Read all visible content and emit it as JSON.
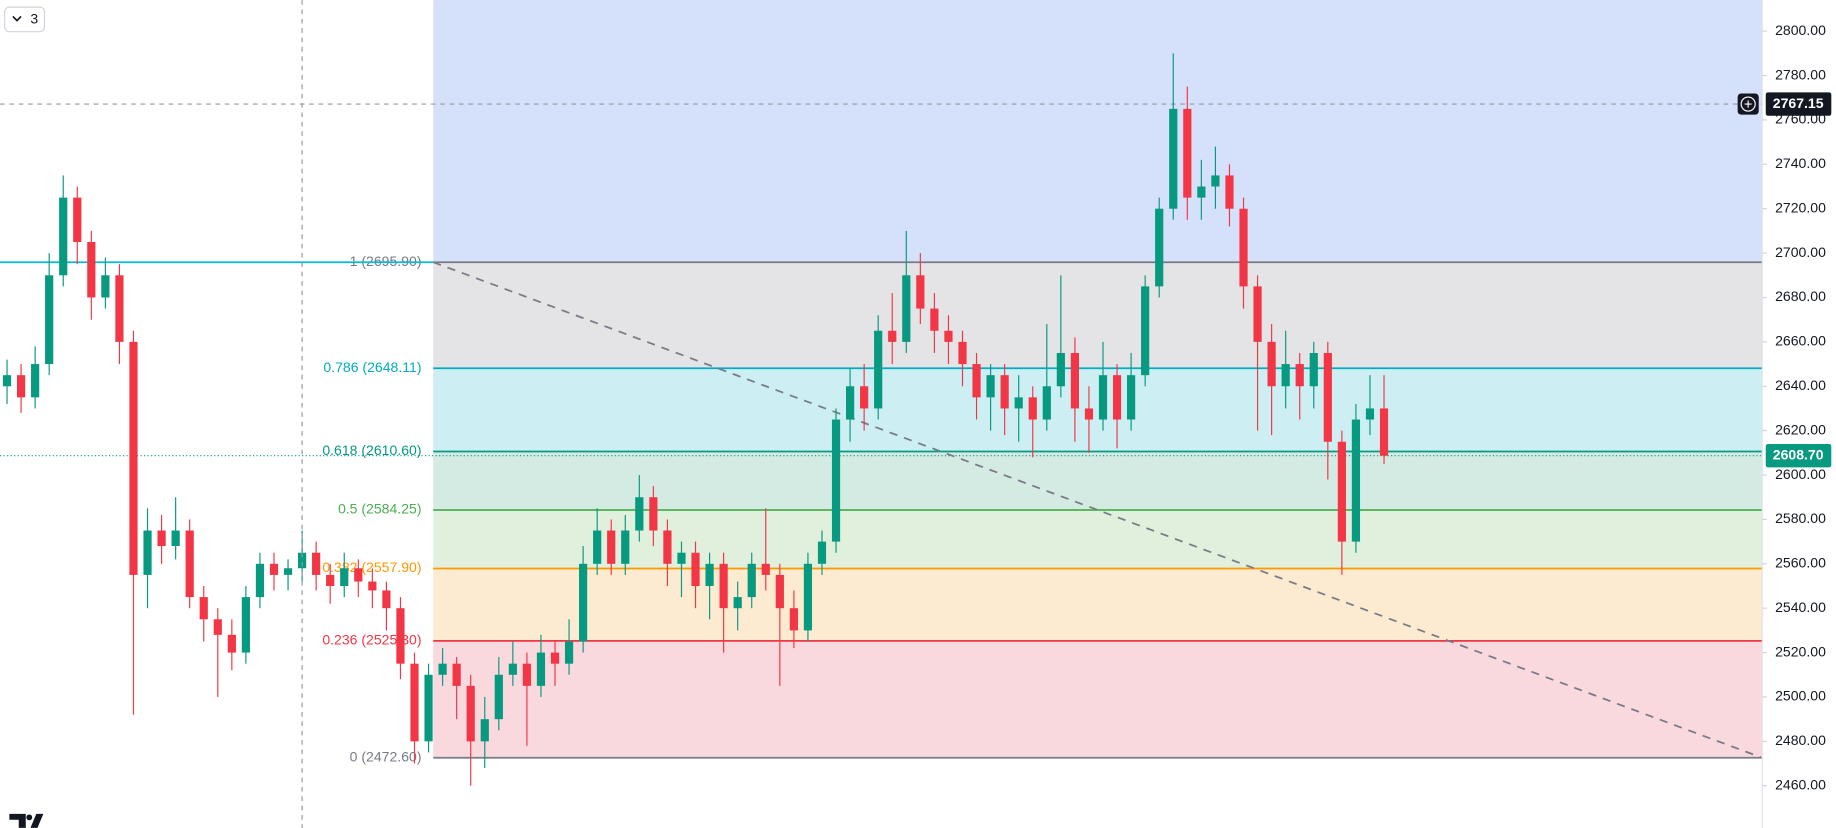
{
  "ui": {
    "indicator_count": "3"
  },
  "chart_data": {
    "type": "candlestick",
    "open": [
      2640,
      2645,
      2635,
      2650,
      2690,
      2725,
      2705,
      2680,
      2690,
      2660,
      2555,
      2575,
      2568,
      2575,
      2545,
      2535,
      2528,
      2520,
      2545,
      2560,
      2555,
      2558,
      2565,
      2555,
      2550,
      2558,
      2552,
      2548,
      2540,
      2515,
      2480,
      2510,
      2515,
      2505,
      2480,
      2490,
      2510,
      2515,
      2505,
      2520,
      2515,
      2525,
      2560,
      2575,
      2560,
      2575,
      2590,
      2575,
      2560,
      2565,
      2550,
      2560,
      2540,
      2545,
      2560,
      2555,
      2540,
      2530,
      2560,
      2570,
      2625,
      2640,
      2630,
      2665,
      2660,
      2690,
      2675,
      2665,
      2660,
      2650,
      2635,
      2645,
      2630,
      2635,
      2625,
      2640,
      2655,
      2630,
      2625,
      2645,
      2625,
      2645,
      2685,
      2720,
      2765,
      2725,
      2730,
      2735,
      2720,
      2685,
      2660,
      2640,
      2650,
      2640,
      2655,
      2615,
      2570,
      2625,
      2630
    ],
    "high": [
      2652,
      2650,
      2658,
      2700,
      2735,
      2730,
      2710,
      2698,
      2695,
      2665,
      2585,
      2582,
      2590,
      2580,
      2550,
      2540,
      2535,
      2550,
      2565,
      2565,
      2562,
      2575,
      2570,
      2560,
      2565,
      2562,
      2558,
      2552,
      2545,
      2520,
      2515,
      2522,
      2518,
      2510,
      2500,
      2518,
      2525,
      2520,
      2528,
      2525,
      2535,
      2568,
      2585,
      2580,
      2582,
      2600,
      2595,
      2580,
      2570,
      2570,
      2565,
      2565,
      2552,
      2565,
      2585,
      2560,
      2548,
      2565,
      2575,
      2630,
      2648,
      2650,
      2672,
      2682,
      2710,
      2700,
      2682,
      2672,
      2665,
      2655,
      2650,
      2650,
      2645,
      2640,
      2668,
      2690,
      2662,
      2640,
      2660,
      2650,
      2655,
      2690,
      2725,
      2790,
      2775,
      2742,
      2748,
      2740,
      2725,
      2690,
      2668,
      2665,
      2655,
      2660,
      2660,
      2620,
      2632,
      2645,
      2645
    ],
    "low": [
      2632,
      2628,
      2630,
      2645,
      2685,
      2695,
      2670,
      2675,
      2650,
      2492,
      2540,
      2560,
      2562,
      2540,
      2525,
      2500,
      2512,
      2515,
      2540,
      2548,
      2548,
      2552,
      2548,
      2542,
      2545,
      2545,
      2540,
      2530,
      2508,
      2470,
      2475,
      2505,
      2490,
      2460,
      2468,
      2485,
      2505,
      2478,
      2500,
      2505,
      2510,
      2520,
      2555,
      2555,
      2555,
      2570,
      2568,
      2550,
      2545,
      2540,
      2535,
      2520,
      2530,
      2540,
      2548,
      2505,
      2522,
      2525,
      2555,
      2565,
      2615,
      2620,
      2625,
      2650,
      2655,
      2668,
      2655,
      2650,
      2640,
      2625,
      2620,
      2618,
      2615,
      2608,
      2620,
      2635,
      2615,
      2610,
      2620,
      2612,
      2620,
      2640,
      2680,
      2715,
      2715,
      2715,
      2720,
      2712,
      2675,
      2620,
      2618,
      2630,
      2625,
      2630,
      2598,
      2555,
      2565,
      2618,
      2605
    ],
    "close": [
      2645,
      2635,
      2650,
      2690,
      2725,
      2705,
      2680,
      2690,
      2660,
      2555,
      2575,
      2568,
      2575,
      2545,
      2535,
      2528,
      2520,
      2545,
      2560,
      2555,
      2558,
      2565,
      2555,
      2550,
      2558,
      2552,
      2548,
      2540,
      2515,
      2480,
      2510,
      2515,
      2505,
      2480,
      2490,
      2510,
      2515,
      2505,
      2520,
      2515,
      2525,
      2560,
      2575,
      2560,
      2575,
      2590,
      2575,
      2560,
      2565,
      2550,
      2560,
      2540,
      2545,
      2560,
      2555,
      2540,
      2530,
      2560,
      2570,
      2625,
      2640,
      2630,
      2665,
      2660,
      2690,
      2675,
      2665,
      2660,
      2650,
      2635,
      2645,
      2630,
      2635,
      2625,
      2640,
      2655,
      2630,
      2625,
      2645,
      2625,
      2645,
      2685,
      2720,
      2765,
      2725,
      2730,
      2735,
      2720,
      2685,
      2660,
      2640,
      2650,
      2640,
      2655,
      2615,
      2570,
      2625,
      2630,
      2608.7
    ],
    "up_color": "#089981",
    "down_color": "#f23645",
    "ylim": [
      2441,
      2814
    ],
    "yticks": [
      {
        "value": 2460,
        "label": "2460.00"
      },
      {
        "value": 2480,
        "label": "2480.00"
      },
      {
        "value": 2500,
        "label": "2500.00"
      },
      {
        "value": 2520,
        "label": "2520.00"
      },
      {
        "value": 2540,
        "label": "2540.00"
      },
      {
        "value": 2560,
        "label": "2560.00"
      },
      {
        "value": 2580,
        "label": "2580.00"
      },
      {
        "value": 2600,
        "label": "2600.00"
      },
      {
        "value": 2620,
        "label": "2620.00"
      },
      {
        "value": 2640,
        "label": "2640.00"
      },
      {
        "value": 2660,
        "label": "2660.00"
      },
      {
        "value": 2680,
        "label": "2680.00"
      },
      {
        "value": 2700,
        "label": "2700.00"
      },
      {
        "value": 2720,
        "label": "2720.00"
      },
      {
        "value": 2740,
        "label": "2740.00"
      },
      {
        "value": 2760,
        "label": "2760.00"
      },
      {
        "value": 2780,
        "label": "2780.00"
      },
      {
        "value": 2800,
        "label": "2800.00"
      }
    ],
    "fib_top_color": "#d5e0fb",
    "fib_levels": [
      {
        "value": 2695.9,
        "label": "1 (2695.90)",
        "color": "#787b86",
        "fill": "#e4e4e6"
      },
      {
        "value": 2648.11,
        "label": "0.786 (2648.11)",
        "color": "#00acc1",
        "fill": "#cdeff3"
      },
      {
        "value": 2610.6,
        "label": "0.618 (2610.60)",
        "color": "#089981",
        "fill": "#d3ebe2"
      },
      {
        "value": 2584.25,
        "label": "0.5 (2584.25)",
        "color": "#4caf50",
        "fill": "#e0f0dc"
      },
      {
        "value": 2557.9,
        "label": "0.382 (2557.90)",
        "color": "#ff9800",
        "fill": "#fcebd0"
      },
      {
        "value": 2525.3,
        "label": "0.236 (2525.30)",
        "color": "#f23645",
        "fill": "#f9d9dd"
      },
      {
        "value": 2472.6,
        "label": "0 (2472.60)",
        "color": "#787b86"
      }
    ],
    "trendline": {
      "from": 2695.9,
      "to": 2472.6,
      "color": "#787b86"
    },
    "horizontal_line": {
      "value": 2695.9,
      "color": "#00bcd4"
    },
    "crosshair": {
      "value": 2767.15,
      "label": "2767.15"
    },
    "last_price": {
      "value": 2608.7,
      "label": "2608.70",
      "color": "#089981"
    }
  }
}
